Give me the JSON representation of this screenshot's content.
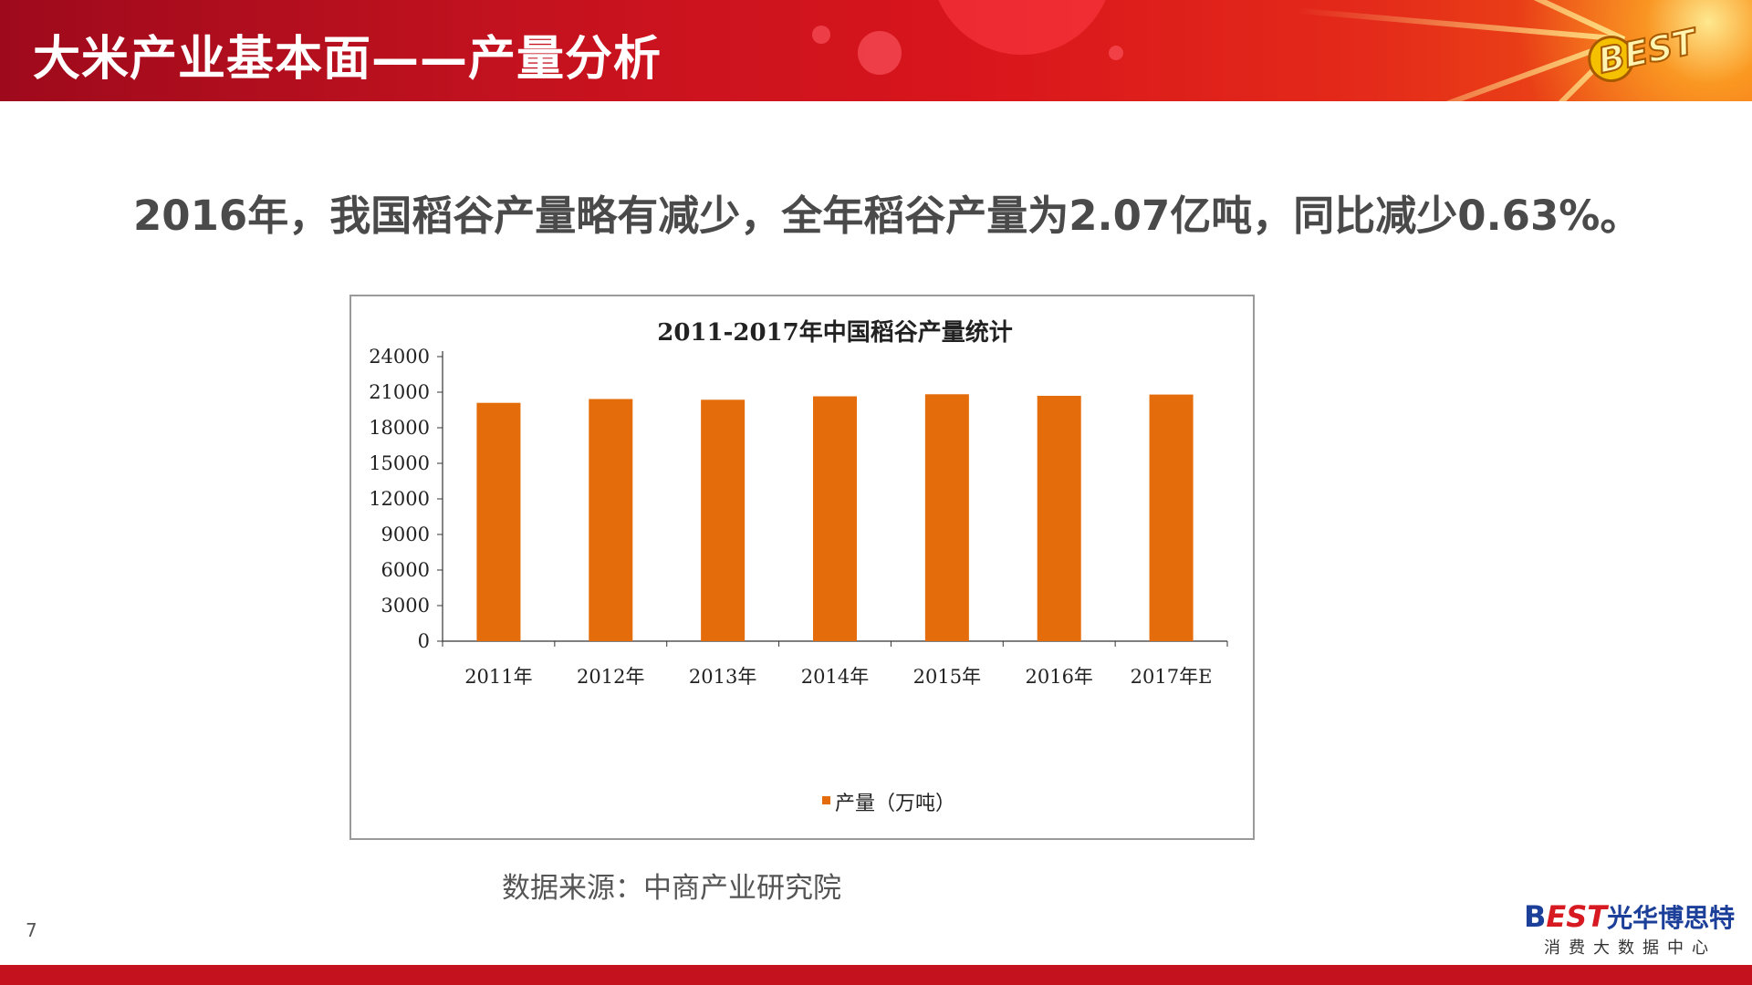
{
  "header": {
    "title": "大米产业基本面——产量分析",
    "logo_text": "BEST"
  },
  "subtitle": "2016年，我国稻谷产量略有减少，全年稻谷产量为2.07亿吨，同比减少0.63%。",
  "chart_data": {
    "type": "bar",
    "title": "2011-2017年中国稻谷产量统计",
    "categories": [
      "2011年",
      "2012年",
      "2013年",
      "2014年",
      "2015年",
      "2016年",
      "2017年E"
    ],
    "series": [
      {
        "name": "产量（万吨）",
        "values": [
          20100,
          20424,
          20361,
          20651,
          20825,
          20693,
          20800
        ],
        "color": "#e46c0a"
      }
    ],
    "ylim": [
      0,
      24000
    ],
    "yticks": [
      "0",
      "3000",
      "6000",
      "9000",
      "12000",
      "15000",
      "18000",
      "21000",
      "24000"
    ],
    "legend_position": "bottom",
    "grid": false
  },
  "source": "数据来源：中商产业研究院",
  "page_number": "7",
  "footer_logo": {
    "brand_b": "B",
    "brand_est": "EST",
    "brand_cn": "光华博思特",
    "tagline": "消费大数据中心"
  },
  "colors": {
    "header_red": "#c4121f",
    "bar_orange": "#e46c0a",
    "brand_blue": "#1c3f99"
  }
}
